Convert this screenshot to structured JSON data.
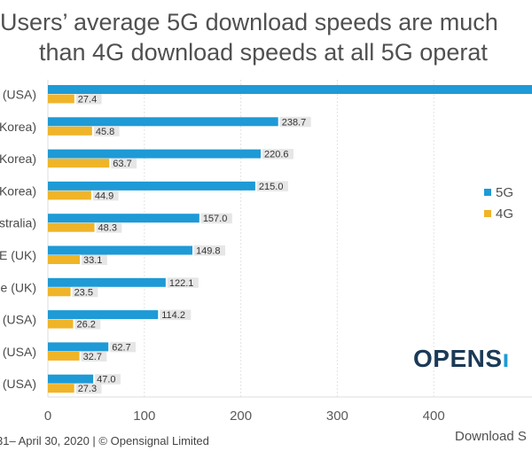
{
  "title": {
    "line1": "Users’ average 5G download speeds are much",
    "line2": "than 4G download speeds at all 5G operat"
  },
  "legend": [
    {
      "label": "5G",
      "color": "#1e9ad6"
    },
    {
      "label": "4G",
      "color": "#f0b429"
    }
  ],
  "logo": {
    "text": "OPENS",
    "icon": "wifi-signal-icon"
  },
  "footer": "31– April 30, 2020  |  © Opensignal Limited",
  "xlabel": "Download S",
  "chart_data": {
    "type": "bar",
    "orientation": "horizontal",
    "title": "Users’ average 5G download speeds are much ... than 4G download speeds at all 5G operat...",
    "xlabel": "Download S",
    "ylabel": "",
    "xlim": [
      0,
      500
    ],
    "xticks": [
      0,
      100,
      200,
      300,
      400
    ],
    "grid": true,
    "legend_position": "right",
    "categories": [
      "(USA)",
      "Korea)",
      "Korea)",
      "Korea)",
      "stralia)",
      "E (UK)",
      "e (UK)",
      "(USA)",
      "(USA)",
      "(USA)"
    ],
    "series": [
      {
        "name": "5G",
        "color": "#1e9ad6",
        "values": [
          null,
          238.7,
          220.6,
          215.0,
          157.0,
          149.8,
          122.1,
          114.2,
          62.7,
          47.0
        ],
        "note": "first 5G bar extends beyond visible area; value label not visible"
      },
      {
        "name": "4G",
        "color": "#f0b429",
        "values": [
          27.4,
          45.8,
          63.7,
          44.9,
          48.3,
          33.1,
          23.5,
          26.2,
          32.7,
          27.3
        ]
      }
    ]
  }
}
